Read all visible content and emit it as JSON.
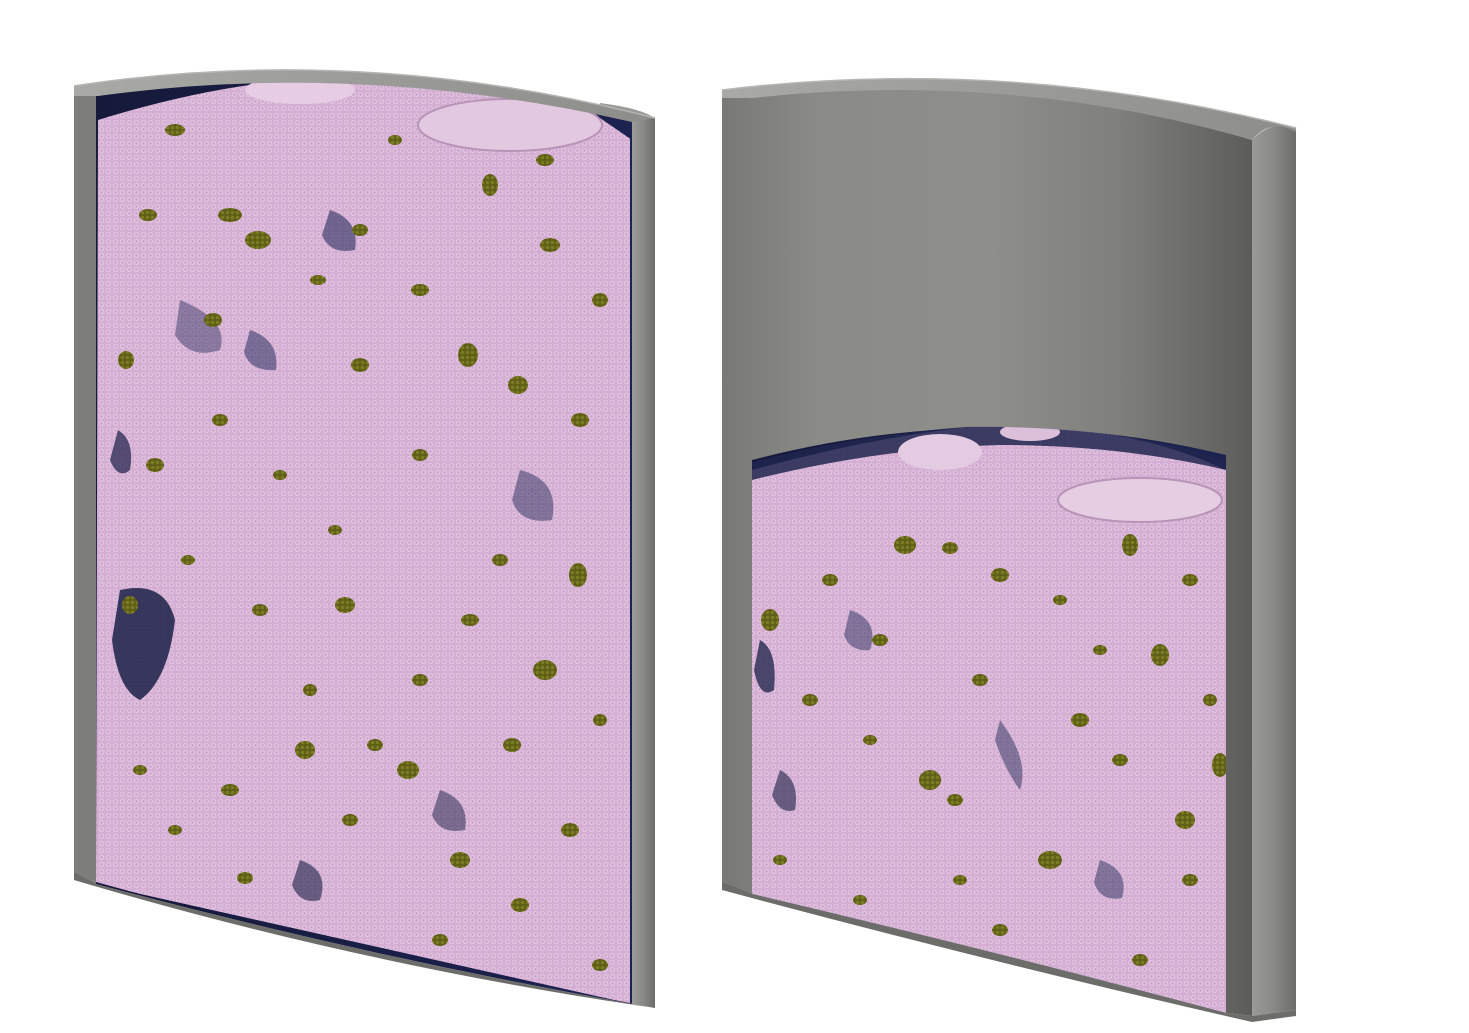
{
  "figure": {
    "panels": [
      {
        "name": "left-column-full",
        "state": "full packed bed"
      },
      {
        "name": "right-column-compacted",
        "state": "compacted packed bed"
      }
    ],
    "colors": {
      "background": "#ffffff",
      "container_light": "#a6a6a2",
      "container_mid": "#8a8a86",
      "container_dark": "#5e5e5b",
      "container_edge": "#6f6f6c",
      "inner_dark": "#1a1f45",
      "particle_pink": "#d8b3d6",
      "particle_pink_shade": "#b08fb6",
      "particle_olive": "#6b6b1e"
    }
  }
}
